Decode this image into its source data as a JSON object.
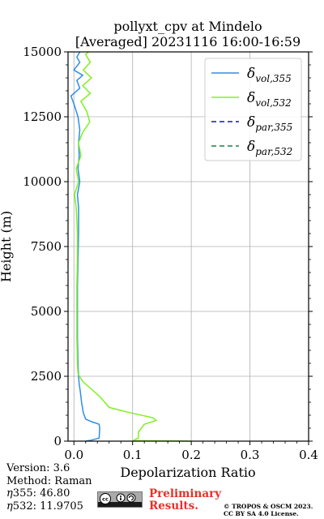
{
  "chart_data": {
    "type": "line",
    "title": "pollyxt_cpv at Mindelo",
    "subtitle": "[Averaged] 20231116 16:00-16:59",
    "xlabel": "Depolarization Ratio",
    "ylabel": "Height (m)",
    "xlim": [
      -0.01,
      0.4
    ],
    "ylim": [
      0,
      15000
    ],
    "xticks": [
      "0.0",
      "0.1",
      "0.2",
      "0.3",
      "0.4"
    ],
    "xtick_values": [
      0.0,
      0.1,
      0.2,
      0.3,
      0.4
    ],
    "yticks": [
      "0",
      "2500",
      "5000",
      "7500",
      "10000",
      "12500",
      "15000"
    ],
    "ytick_values": [
      0,
      2500,
      5000,
      7500,
      10000,
      12500,
      15000
    ],
    "grid": true,
    "legend_position": "top-right",
    "series": [
      {
        "key": "vol355",
        "name": "δ",
        "subscript": "vol,355",
        "color": "#2e8ee8",
        "dash": "solid",
        "points": [
          [
            0.02,
            0
          ],
          [
            0.03,
            40
          ],
          [
            0.043,
            120
          ],
          [
            0.044,
            500
          ],
          [
            0.043,
            650
          ],
          [
            0.03,
            750
          ],
          [
            0.02,
            850
          ],
          [
            0.016,
            1100
          ],
          [
            0.013,
            1500
          ],
          [
            0.011,
            1900
          ],
          [
            0.009,
            2200
          ],
          [
            0.008,
            2500
          ],
          [
            0.007,
            3000
          ],
          [
            0.006,
            4000
          ],
          [
            0.006,
            5000
          ],
          [
            0.006,
            6000
          ],
          [
            0.007,
            7000
          ],
          [
            0.008,
            8000
          ],
          [
            0.008,
            9000
          ],
          [
            0.006,
            9500
          ],
          [
            0.01,
            10000
          ],
          [
            0.007,
            10500
          ],
          [
            0.009,
            11000
          ],
          [
            0.008,
            11500
          ],
          [
            0.01,
            12000
          ],
          [
            0.007,
            12500
          ],
          [
            0.0,
            13000
          ],
          [
            -0.005,
            13300
          ],
          [
            0.01,
            13600
          ],
          [
            0.005,
            13900
          ],
          [
            0.015,
            14100
          ],
          [
            0.0,
            14300
          ],
          [
            0.01,
            14600
          ],
          [
            0.005,
            14800
          ],
          [
            0.01,
            15000
          ]
        ]
      },
      {
        "key": "vol532",
        "name": "δ",
        "subscript": "vol,532",
        "color": "#80f020",
        "dash": "solid",
        "points": [
          [
            0.2,
            0
          ],
          [
            0.1,
            20
          ],
          [
            0.11,
            120
          ],
          [
            0.11,
            350
          ],
          [
            0.12,
            650
          ],
          [
            0.14,
            800
          ],
          [
            0.135,
            900
          ],
          [
            0.095,
            1100
          ],
          [
            0.06,
            1300
          ],
          [
            0.045,
            1700
          ],
          [
            0.03,
            2000
          ],
          [
            0.015,
            2300
          ],
          [
            0.007,
            2600
          ],
          [
            0.006,
            3000
          ],
          [
            0.005,
            4000
          ],
          [
            0.005,
            5000
          ],
          [
            0.005,
            6000
          ],
          [
            0.006,
            7000
          ],
          [
            0.006,
            8000
          ],
          [
            0.004,
            9000
          ],
          [
            0.001,
            9500
          ],
          [
            0.008,
            10000
          ],
          [
            0.004,
            10500
          ],
          [
            0.012,
            11000
          ],
          [
            0.008,
            11500
          ],
          [
            0.015,
            11900
          ],
          [
            0.027,
            12300
          ],
          [
            0.022,
            12700
          ],
          [
            0.012,
            13100
          ],
          [
            0.028,
            13400
          ],
          [
            0.015,
            13700
          ],
          [
            0.03,
            14000
          ],
          [
            0.016,
            14300
          ],
          [
            0.028,
            14600
          ],
          [
            0.02,
            14900
          ],
          [
            0.025,
            15000
          ]
        ]
      },
      {
        "key": "par355",
        "name": "δ",
        "subscript": "par,355",
        "color": "#1515b8",
        "dash": "dashed",
        "points": []
      },
      {
        "key": "par532",
        "name": "δ",
        "subscript": "par,532",
        "color": "#14854a",
        "dash": "dashed",
        "points": []
      }
    ]
  },
  "footer": {
    "version": "Version: 3.6",
    "method": "Method: Raman",
    "eta355_symbol": "η",
    "eta355": "355:  46.80",
    "eta532_symbol": "η",
    "eta532": "532: 11.9705",
    "license_badge": "cc-by-sa-icon",
    "preliminary_line1": "Preliminary",
    "preliminary_line2": "Results.",
    "copyright_line1": "© TROPOS & OSCM 2023.",
    "copyright_line2": "CC BY SA 4.0 License."
  }
}
